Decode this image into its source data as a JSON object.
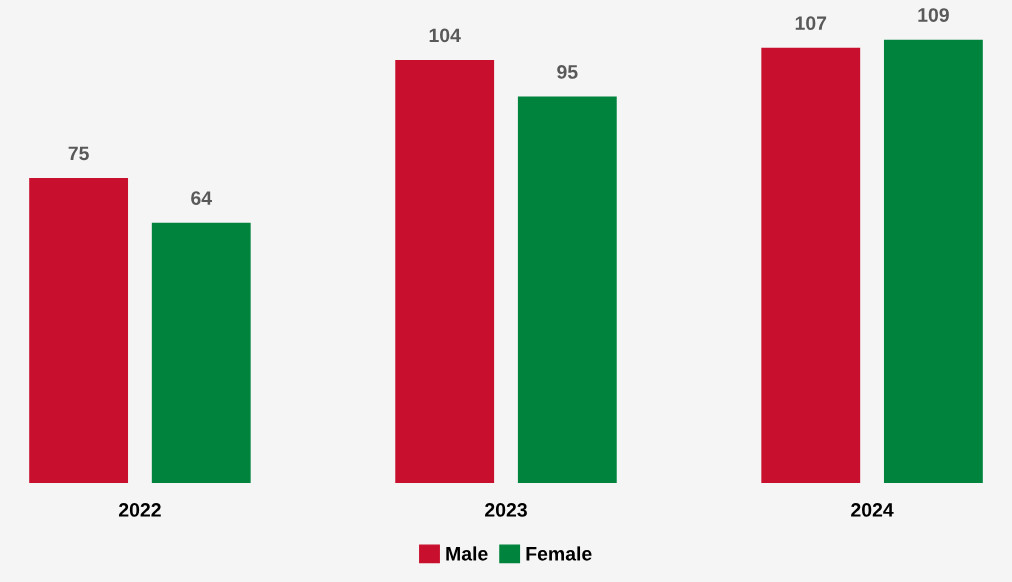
{
  "chart_data": {
    "type": "bar",
    "categories": [
      "2022",
      "2023",
      "2024"
    ],
    "series": [
      {
        "name": "Male",
        "color": "#c8102e",
        "values": [
          75,
          104,
          107
        ]
      },
      {
        "name": "Female",
        "color": "#00843d",
        "values": [
          64,
          95,
          109
        ]
      }
    ],
    "data_labels": true,
    "legend": "bottom",
    "grid": false
  }
}
